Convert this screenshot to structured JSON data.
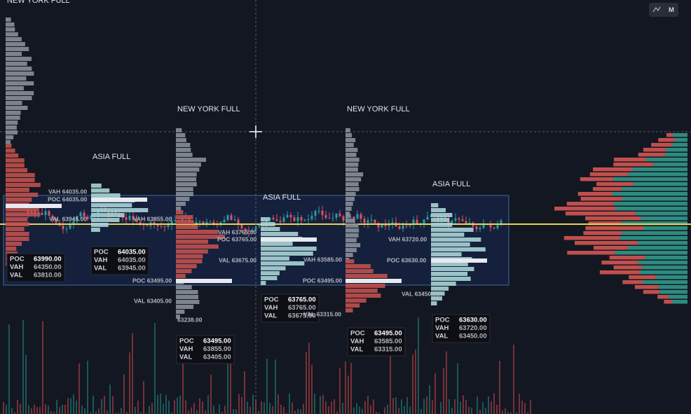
{
  "toolbar": {
    "buttons": [
      "M"
    ]
  },
  "sessions": [
    {
      "title": "NEW YORK FULL",
      "levels": [],
      "box": [
        [
          "POC",
          "63990.00"
        ],
        [
          "VAH",
          "64350.00"
        ],
        [
          "VAL",
          "63810.00"
        ]
      ]
    },
    {
      "title": "ASIA FULL",
      "levels": [
        "VAH 64035.00",
        "POC 64035.00",
        "VAL 63945.00"
      ],
      "box": [
        [
          "POC",
          "64035.00"
        ],
        [
          "VAH",
          "64035.00"
        ],
        [
          "VAL",
          "63945.00"
        ]
      ]
    },
    {
      "title": "NEW YORK FULL",
      "levels": [
        "VAH 63855.00",
        "POC 63495.00",
        "VAL 63405.00",
        "63238.00"
      ],
      "box": [
        [
          "POC",
          "63495.00"
        ],
        [
          "VAH",
          "63855.00"
        ],
        [
          "VAL",
          "63405.00"
        ]
      ]
    },
    {
      "title": "ASIA FULL",
      "levels": [
        "VAH 63765.00",
        "POC 63765.00",
        "VAL 63675.00"
      ],
      "box": [
        [
          "POC",
          "63765.00"
        ],
        [
          "VAH",
          "63765.00"
        ],
        [
          "VAL",
          "63675.00"
        ]
      ]
    },
    {
      "title": "NEW YORK FULL",
      "levels": [
        "VAH 63585.00",
        "POC 63495.00",
        "VAL 63315.00"
      ],
      "box": [
        [
          "POC",
          "63495.00"
        ],
        [
          "VAH",
          "63585.00"
        ],
        [
          "VAL",
          "63315.00"
        ]
      ]
    },
    {
      "title": "ASIA FULL",
      "levels": [
        "VAH 63720.00",
        "POC 63630.00",
        "VAL 63450.00"
      ],
      "box": [
        [
          "POC",
          "63630.00"
        ],
        [
          "VAH",
          "63720.00"
        ],
        [
          "VAL",
          "63450.00"
        ]
      ]
    }
  ]
}
